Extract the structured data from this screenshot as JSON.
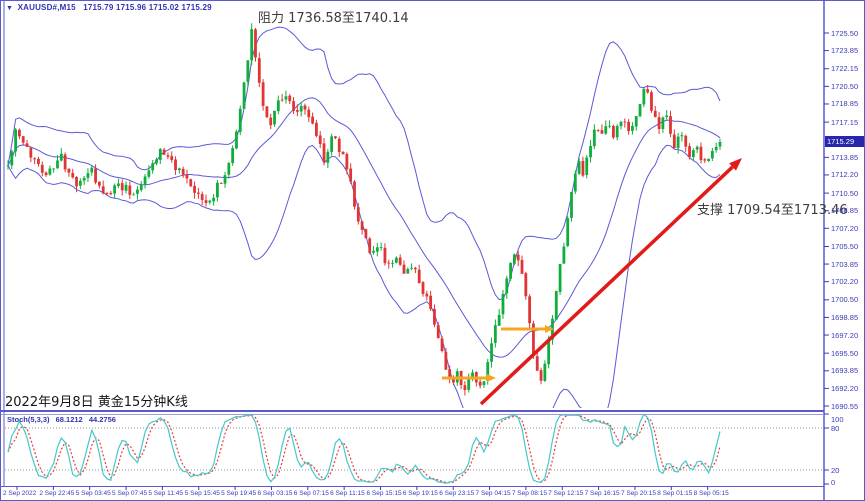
{
  "window": {
    "symbol": "XAUUSD#,M15",
    "ohlc": "1715.79 1715.96 1715.02 1715.29",
    "dropdown_icon": "▼"
  },
  "annotations": {
    "resistance": "阻力 1736.58至1740.14",
    "support": "支撑 1709.54至1713.46",
    "caption": "2022年9月8日 黄金15分钟K线"
  },
  "indicator": {
    "name": "Stoch(5,3,3)",
    "k_value": "68.1212",
    "d_value": "44.2756"
  },
  "chart_data": {
    "type": "candlestick",
    "title": "XAUUSD# 15-minute candles with Bollinger Bands and Stochastic(5,3,3)",
    "current_price": "1715.29",
    "ohlc_current": {
      "open": 1715.79,
      "high": 1715.96,
      "low": 1715.02,
      "close": 1715.29
    },
    "price_range": [
      1690.55,
      1727.0
    ],
    "session_high": 1726.5,
    "session_low": 1691.0,
    "resistance_zone": [
      1736.58,
      1740.14
    ],
    "support_zone": [
      1709.54,
      1713.46
    ],
    "y_ticks": [
      "1725.50",
      "1723.85",
      "1722.15",
      "1720.50",
      "1718.85",
      "1717.15",
      "1713.85",
      "1712.20",
      "1710.50",
      "1708.85",
      "1707.20",
      "1705.50",
      "1703.85",
      "1702.20",
      "1700.50",
      "1698.85",
      "1697.20",
      "1695.50",
      "1693.85",
      "1692.20",
      "1690.55"
    ],
    "stoch_ticks": [
      "100",
      "80",
      "20",
      "0"
    ],
    "x_ticks": [
      "2 Sep 2022",
      "2 Sep 22:45",
      "5 Sep 03:45",
      "5 Sep 07:45",
      "5 Sep 11:45",
      "5 Sep 15:45",
      "5 Sep 19:45",
      "6 Sep 03:15",
      "6 Sep 07:15",
      "6 Sep 11:15",
      "6 Sep 15:15",
      "6 Sep 19:15",
      "6 Sep 23:15",
      "7 Sep 04:15",
      "7 Sep 08:15",
      "7 Sep 12:15",
      "7 Sep 16:15",
      "7 Sep 20:15",
      "8 Sep 01:15",
      "8 Sep 05:15"
    ],
    "candle_count": 188,
    "bollinger": {
      "period": 20,
      "deviation": 2
    },
    "stochastic": {
      "k_period": 5,
      "slowing": 3,
      "d_period": 3,
      "range": [
        0,
        100
      ],
      "levels": [
        80,
        20
      ],
      "k": 68.1212,
      "d": 44.2756
    },
    "price_path": [
      [
        0.0,
        1713.0
      ],
      [
        0.01,
        1716.2
      ],
      [
        0.03,
        1714.2
      ],
      [
        0.055,
        1712.3
      ],
      [
        0.075,
        1713.8
      ],
      [
        0.095,
        1711.0
      ],
      [
        0.115,
        1712.8
      ],
      [
        0.135,
        1710.0
      ],
      [
        0.155,
        1711.5
      ],
      [
        0.175,
        1710.4
      ],
      [
        0.195,
        1712.4
      ],
      [
        0.215,
        1714.6
      ],
      [
        0.235,
        1713.0
      ],
      [
        0.258,
        1710.8
      ],
      [
        0.278,
        1709.4
      ],
      [
        0.292,
        1710.8
      ],
      [
        0.31,
        1713.0
      ],
      [
        0.323,
        1717.0
      ],
      [
        0.334,
        1721.8
      ],
      [
        0.343,
        1726.3
      ],
      [
        0.351,
        1721.6
      ],
      [
        0.36,
        1717.8
      ],
      [
        0.37,
        1717.2
      ],
      [
        0.38,
        1719.4
      ],
      [
        0.393,
        1719.6
      ],
      [
        0.403,
        1717.6
      ],
      [
        0.413,
        1719.0
      ],
      [
        0.426,
        1717.2
      ],
      [
        0.436,
        1715.6
      ],
      [
        0.445,
        1713.4
      ],
      [
        0.456,
        1716.0
      ],
      [
        0.466,
        1714.6
      ],
      [
        0.478,
        1712.6
      ],
      [
        0.49,
        1708.4
      ],
      [
        0.502,
        1706.2
      ],
      [
        0.513,
        1704.6
      ],
      [
        0.523,
        1705.8
      ],
      [
        0.533,
        1703.4
      ],
      [
        0.545,
        1704.8
      ],
      [
        0.557,
        1702.4
      ],
      [
        0.568,
        1703.8
      ],
      [
        0.579,
        1701.8
      ],
      [
        0.592,
        1700.4
      ],
      [
        0.604,
        1697.0
      ],
      [
        0.613,
        1694.4
      ],
      [
        0.621,
        1692.6
      ],
      [
        0.631,
        1693.8
      ],
      [
        0.641,
        1692.2
      ],
      [
        0.652,
        1694.2
      ],
      [
        0.661,
        1692.0
      ],
      [
        0.669,
        1693.4
      ],
      [
        0.681,
        1696.6
      ],
      [
        0.693,
        1700.4
      ],
      [
        0.703,
        1703.4
      ],
      [
        0.713,
        1704.8
      ],
      [
        0.723,
        1702.8
      ],
      [
        0.731,
        1698.8
      ],
      [
        0.739,
        1694.6
      ],
      [
        0.747,
        1692.4
      ],
      [
        0.753,
        1693.8
      ],
      [
        0.761,
        1697.0
      ],
      [
        0.769,
        1700.6
      ],
      [
        0.777,
        1704.2
      ],
      [
        0.785,
        1707.8
      ],
      [
        0.793,
        1711.0
      ],
      [
        0.801,
        1713.6
      ],
      [
        0.809,
        1712.2
      ],
      [
        0.817,
        1714.8
      ],
      [
        0.825,
        1716.6
      ],
      [
        0.833,
        1715.4
      ],
      [
        0.841,
        1716.9
      ],
      [
        0.851,
        1715.6
      ],
      [
        0.861,
        1717.3
      ],
      [
        0.873,
        1716.1
      ],
      [
        0.884,
        1718.1
      ],
      [
        0.895,
        1720.6
      ],
      [
        0.905,
        1718.1
      ],
      [
        0.915,
        1716.7
      ],
      [
        0.925,
        1717.7
      ],
      [
        0.935,
        1714.9
      ],
      [
        0.945,
        1716.3
      ],
      [
        0.955,
        1713.7
      ],
      [
        0.965,
        1715.0
      ],
      [
        0.975,
        1713.3
      ],
      [
        0.988,
        1714.5
      ],
      [
        1.0,
        1715.29
      ]
    ]
  },
  "colors": {
    "background": "#ffffff",
    "border_blue": "#5a5acd",
    "axis_text": "#3a3ab8",
    "candle_up": "#0fae3c",
    "candle_down": "#e03535",
    "band": "#5a5ad8",
    "stoch_k": "#45c8c8",
    "stoch_d": "#e04040",
    "grid_dotted": "#9a9a9a",
    "arrow_red": "#e31a1a",
    "arrow_orange": "#f5a623",
    "badge_bg": "#2626ae",
    "badge_text": "#ffffff"
  }
}
